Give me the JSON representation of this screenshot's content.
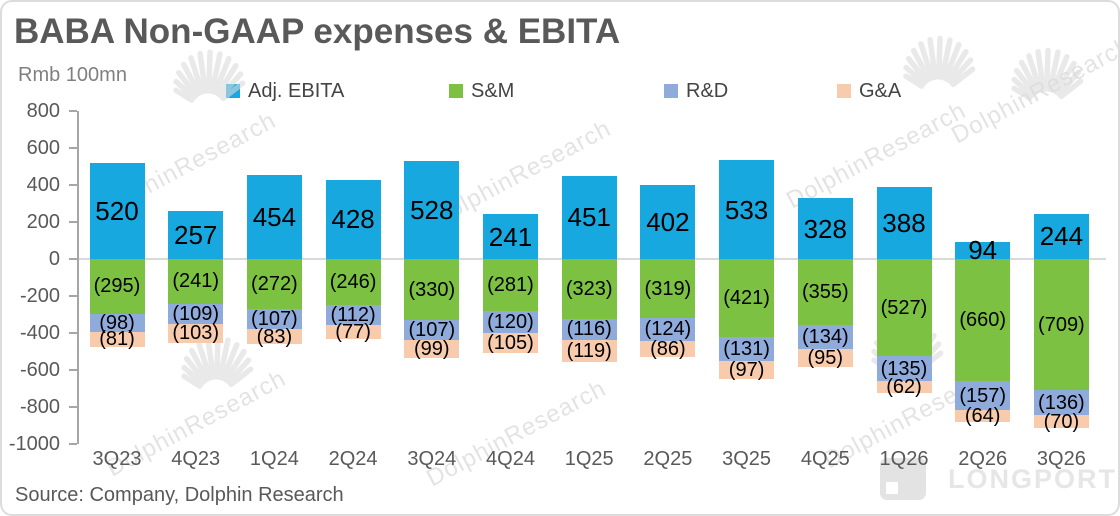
{
  "title": "BABA Non-GAAP expenses & EBITA",
  "unit_label": "Rmb 100mn",
  "source": "Source: Company, Dolphin Research",
  "watermark": {
    "text": "DolphinResearch",
    "brand": "LONGPORT"
  },
  "colors": {
    "ebita": "#17A8E0",
    "sm": "#7CC142",
    "rd": "#8FABDC",
    "ga": "#F8CBAD",
    "axis": "#A6A6A6",
    "zero_line": "#D9D9D9",
    "text_gray": "#595959"
  },
  "chart_data": {
    "type": "bar",
    "stacked": true,
    "title": "BABA Non-GAAP expenses & EBITA",
    "ylabel": "Rmb 100mn",
    "ylim": [
      -1000,
      800
    ],
    "ytick_step": 200,
    "grid": "zero-line-only",
    "legend_position": "top",
    "value_label_format": "negatives shown in parentheses",
    "categories": [
      "3Q23",
      "4Q23",
      "1Q24",
      "2Q24",
      "3Q24",
      "4Q24",
      "1Q25",
      "2Q25",
      "3Q25",
      "4Q25",
      "1Q26",
      "2Q26",
      "3Q26"
    ],
    "series": [
      {
        "name": "Adj. EBITA",
        "color": "#17A8E0",
        "values": [
          520,
          257,
          454,
          428,
          528,
          241,
          451,
          402,
          533,
          328,
          388,
          94,
          244
        ]
      },
      {
        "name": "S&M",
        "color": "#7CC142",
        "values": [
          -295,
          -241,
          -272,
          -246,
          -330,
          -281,
          -323,
          -319,
          -421,
          -355,
          -527,
          -660,
          -709
        ]
      },
      {
        "name": "R&D",
        "color": "#8FABDC",
        "values": [
          -98,
          -109,
          -107,
          -112,
          -107,
          -120,
          -116,
          -124,
          -131,
          -134,
          -135,
          -157,
          -136
        ]
      },
      {
        "name": "G&A",
        "color": "#F8CBAD",
        "values": [
          -81,
          -103,
          -83,
          -77,
          -99,
          -105,
          -119,
          -86,
          -97,
          -95,
          -62,
          -64,
          -70
        ]
      }
    ]
  }
}
